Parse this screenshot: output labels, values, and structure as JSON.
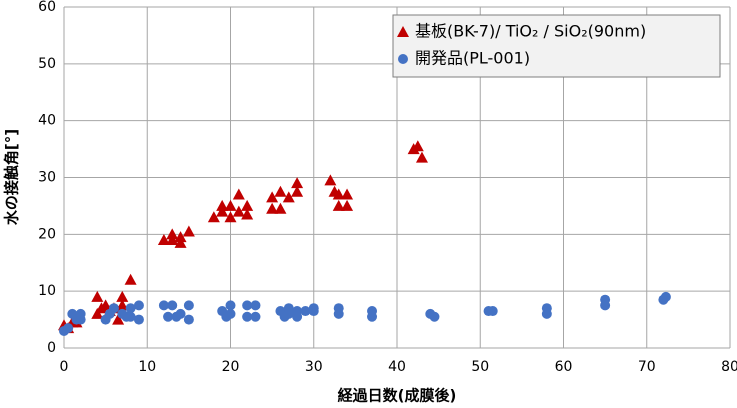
{
  "chart_data": {
    "type": "scatter",
    "xlabel": "経過日数(成膜後)",
    "ylabel": "水の接触角[°]",
    "xlim": [
      0,
      80
    ],
    "xticks": [
      0,
      10,
      20,
      30,
      40,
      50,
      60,
      70,
      80
    ],
    "ylim": [
      0,
      60
    ],
    "yticks": [
      0,
      10,
      20,
      30,
      40,
      50,
      60
    ],
    "grid": true,
    "legend": "upper right",
    "series": [
      {
        "name": "基板(BK-7)/ TiO₂ / SiO₂(90nm)",
        "color": "#c00000",
        "marker": "triangle",
        "x": [
          0,
          0.5,
          1,
          1.5,
          4,
          4,
          4.5,
          5,
          5.5,
          6,
          6.5,
          7,
          7,
          8,
          12,
          13,
          13,
          14,
          14,
          15,
          18,
          19,
          19,
          20,
          20,
          21,
          21,
          22,
          22,
          25,
          25,
          26,
          26,
          27,
          28,
          28,
          32,
          32.5,
          33,
          33,
          34,
          34,
          42,
          42.5,
          43
        ],
        "values": [
          4,
          3.5,
          4.5,
          4.5,
          9,
          6,
          7,
          7.5,
          6.5,
          7,
          5,
          9,
          7.5,
          12,
          19,
          20,
          19,
          18.5,
          19.5,
          20.5,
          23,
          24,
          25,
          23,
          25,
          27,
          24,
          23.5,
          25,
          26.5,
          24.5,
          24.5,
          27.5,
          26.5,
          27.5,
          29,
          29.5,
          27.5,
          25,
          27,
          25,
          27,
          35,
          35.5,
          33.5
        ]
      },
      {
        "name": "開発品(PL-001)",
        "color": "#4472c4",
        "marker": "circle",
        "x": [
          0,
          0.5,
          1,
          1.5,
          2,
          2,
          5,
          5.5,
          6,
          7,
          7.5,
          8,
          8,
          9,
          9,
          12,
          12.5,
          13,
          13.5,
          14,
          15,
          15,
          19,
          19.5,
          20,
          20,
          22,
          22,
          23,
          23,
          26,
          26.5,
          27,
          27,
          28,
          28,
          29,
          30,
          30,
          33,
          33,
          37,
          37,
          44,
          44.5,
          51,
          51.5,
          58,
          58,
          65,
          65,
          72,
          72.3
        ],
        "values": [
          3,
          3.5,
          6,
          5,
          5,
          6,
          5,
          6,
          7,
          6,
          5.5,
          5.5,
          7,
          7.5,
          5,
          7.5,
          5.5,
          7.5,
          5.5,
          6,
          7.5,
          5,
          6.5,
          5.5,
          7.5,
          6,
          7.5,
          5.5,
          7.5,
          5.5,
          6.5,
          5.5,
          7,
          6,
          6.5,
          5.5,
          6.5,
          7,
          6.5,
          7,
          6,
          6.5,
          5.5,
          6,
          5.5,
          6.5,
          6.5,
          6,
          7,
          8.5,
          7.5,
          8.5,
          9
        ]
      }
    ]
  }
}
